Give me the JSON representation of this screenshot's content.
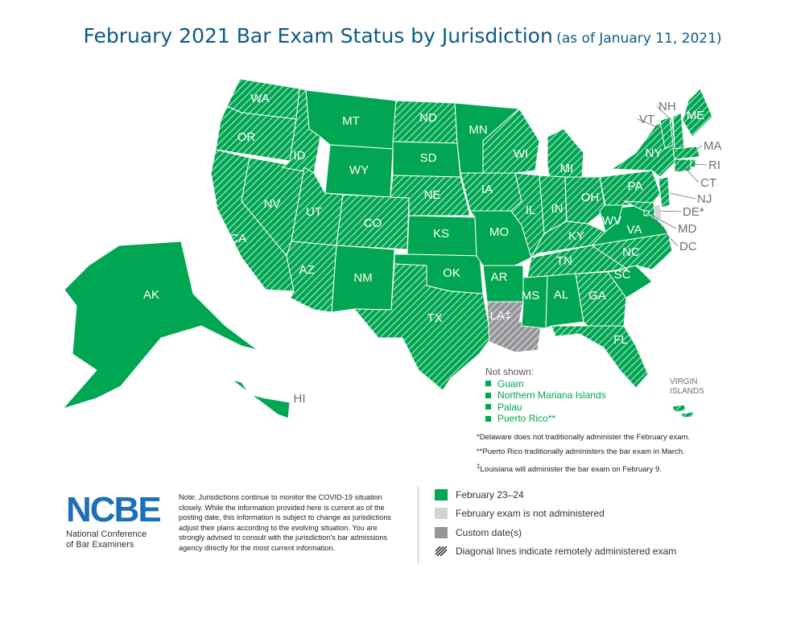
{
  "title": {
    "main": "February 2021 Bar Exam Status by Jurisdiction",
    "subtitle": "(as of January 11, 2021)"
  },
  "colors": {
    "february": "#00a651",
    "not_administered": "#d1d3d4",
    "custom": "#939598",
    "hatch": "#ffffff"
  },
  "states": [
    {
      "abbr": "WA",
      "status": "february",
      "remote": true
    },
    {
      "abbr": "OR",
      "status": "february",
      "remote": true
    },
    {
      "abbr": "CA",
      "status": "february",
      "remote": true
    },
    {
      "abbr": "NV",
      "status": "february",
      "remote": true
    },
    {
      "abbr": "ID",
      "status": "february",
      "remote": true
    },
    {
      "abbr": "MT",
      "status": "february",
      "remote": false
    },
    {
      "abbr": "WY",
      "status": "february",
      "remote": false
    },
    {
      "abbr": "UT",
      "status": "february",
      "remote": true
    },
    {
      "abbr": "AZ",
      "status": "february",
      "remote": true
    },
    {
      "abbr": "CO",
      "status": "february",
      "remote": true
    },
    {
      "abbr": "NM",
      "status": "february",
      "remote": false
    },
    {
      "abbr": "ND",
      "status": "february",
      "remote": true
    },
    {
      "abbr": "SD",
      "status": "february",
      "remote": false
    },
    {
      "abbr": "NE",
      "status": "february",
      "remote": true
    },
    {
      "abbr": "KS",
      "status": "february",
      "remote": false
    },
    {
      "abbr": "OK",
      "status": "february",
      "remote": false
    },
    {
      "abbr": "TX",
      "status": "february",
      "remote": true
    },
    {
      "abbr": "MN",
      "status": "february",
      "remote": false
    },
    {
      "abbr": "IA",
      "status": "february",
      "remote": true
    },
    {
      "abbr": "MO",
      "status": "february",
      "remote": false
    },
    {
      "abbr": "AR",
      "status": "february",
      "remote": false
    },
    {
      "abbr": "LA",
      "status": "custom",
      "remote": true,
      "mark": "‡"
    },
    {
      "abbr": "WI",
      "status": "february",
      "remote": true
    },
    {
      "abbr": "IL",
      "status": "february",
      "remote": true
    },
    {
      "abbr": "MI",
      "status": "february",
      "remote": true
    },
    {
      "abbr": "IN",
      "status": "february",
      "remote": true
    },
    {
      "abbr": "OH",
      "status": "february",
      "remote": true
    },
    {
      "abbr": "KY",
      "status": "february",
      "remote": true
    },
    {
      "abbr": "TN",
      "status": "february",
      "remote": true
    },
    {
      "abbr": "MS",
      "status": "february",
      "remote": false
    },
    {
      "abbr": "AL",
      "status": "february",
      "remote": false
    },
    {
      "abbr": "GA",
      "status": "february",
      "remote": true
    },
    {
      "abbr": "FL",
      "status": "february",
      "remote": true
    },
    {
      "abbr": "SC",
      "status": "february",
      "remote": false
    },
    {
      "abbr": "NC",
      "status": "february",
      "remote": true
    },
    {
      "abbr": "VA",
      "status": "february",
      "remote": false
    },
    {
      "abbr": "WV",
      "status": "february",
      "remote": false
    },
    {
      "abbr": "PA",
      "status": "february",
      "remote": true
    },
    {
      "abbr": "NY",
      "status": "february",
      "remote": true
    },
    {
      "abbr": "ME",
      "status": "february",
      "remote": true
    },
    {
      "abbr": "VT",
      "status": "february",
      "remote": true
    },
    {
      "abbr": "NH",
      "status": "february",
      "remote": true
    },
    {
      "abbr": "MA",
      "status": "february",
      "remote": true
    },
    {
      "abbr": "RI",
      "status": "february",
      "remote": true
    },
    {
      "abbr": "CT",
      "status": "february",
      "remote": true
    },
    {
      "abbr": "NJ",
      "status": "february",
      "remote": true
    },
    {
      "abbr": "DE",
      "status": "not_administered",
      "remote": false,
      "mark": "*"
    },
    {
      "abbr": "MD",
      "status": "february",
      "remote": true
    },
    {
      "abbr": "DC",
      "status": "february",
      "remote": true
    },
    {
      "abbr": "AK",
      "status": "february",
      "remote": false
    },
    {
      "abbr": "HI",
      "status": "february",
      "remote": false
    }
  ],
  "not_shown": {
    "heading": "Not shown:",
    "items": [
      "Guam",
      "Northern Mariana Islands",
      "Palau",
      "Puerto Rico**"
    ]
  },
  "virgin_islands": {
    "line1": "VIRGIN",
    "line2": "ISLANDS",
    "status": "february",
    "remote": true
  },
  "footnotes": {
    "delaware": "*Delaware does not traditionally administer the February exam.",
    "puerto_rico": "**Puerto Rico traditionally administers the bar exam in March.",
    "louisiana_mark": "‡",
    "louisiana": "Louisiana will administer the bar exam on February 9."
  },
  "logo": {
    "acronym": "NCBE",
    "org_line1": "National Conference",
    "org_line2": "of Bar Examiners"
  },
  "note": "Note: Jurisdictions continue to monitor the COVID-19 situation closely. While the information provided here is current as of the posting date, this information is subject to change as jurisdictions adjust their plans according to the evolving situation. You are strongly advised to consult with the jurisdiction's bar admissions agency directly for the most current information.",
  "legend": [
    {
      "label": "February 23–24",
      "swatch": "february"
    },
    {
      "label": "February exam is not administered",
      "swatch": "not_administered"
    },
    {
      "label": "Custom date(s)",
      "swatch": "custom"
    },
    {
      "label": "Diagonal lines indicate remotely administered exam",
      "swatch": "hatch"
    }
  ]
}
